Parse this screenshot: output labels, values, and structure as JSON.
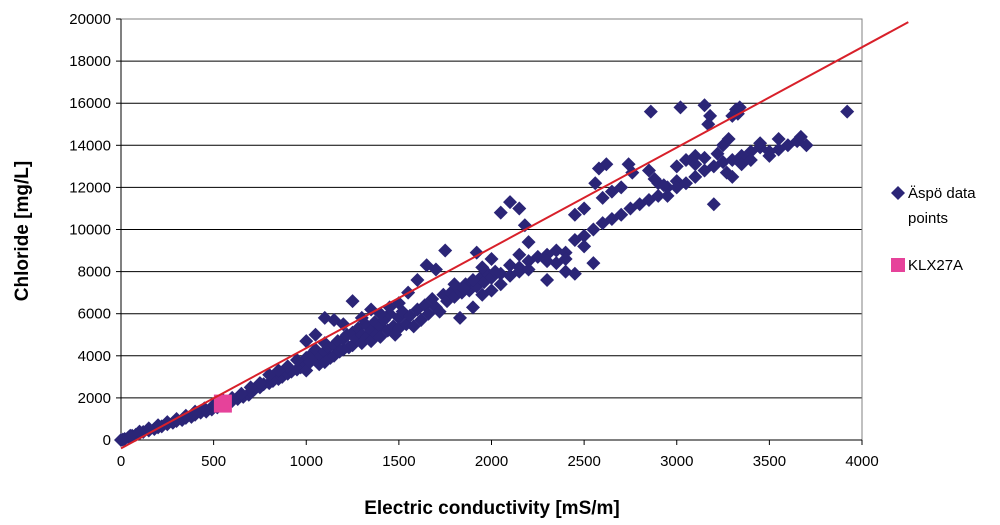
{
  "chart_data": {
    "type": "scatter",
    "title": "",
    "xlabel": "Electric conductivity [mS/m]",
    "ylabel": "Chloride [mg/L]",
    "xlim": [
      0,
      4000
    ],
    "ylim": [
      0,
      20000
    ],
    "xticks": [
      0,
      500,
      1000,
      1500,
      2000,
      2500,
      3000,
      3500,
      4000
    ],
    "yticks": [
      0,
      2000,
      4000,
      6000,
      8000,
      10000,
      12000,
      14000,
      16000,
      18000,
      20000
    ],
    "grid": "horizontal",
    "legend_position": "right",
    "series": [
      {
        "name": "Äspö data points",
        "marker": "diamond",
        "color": "#2b2577",
        "points": [
          [
            0,
            0
          ],
          [
            20,
            50
          ],
          [
            40,
            120
          ],
          [
            60,
            200
          ],
          [
            80,
            250
          ],
          [
            100,
            320
          ],
          [
            120,
            380
          ],
          [
            150,
            450
          ],
          [
            180,
            520
          ],
          [
            200,
            600
          ],
          [
            220,
            650
          ],
          [
            250,
            750
          ],
          [
            280,
            820
          ],
          [
            300,
            900
          ],
          [
            330,
            950
          ],
          [
            350,
            1050
          ],
          [
            380,
            1100
          ],
          [
            400,
            1200
          ],
          [
            430,
            1300
          ],
          [
            460,
            1350
          ],
          [
            490,
            1450
          ],
          [
            520,
            1550
          ],
          [
            550,
            1650
          ],
          [
            580,
            1750
          ],
          [
            600,
            1850
          ],
          [
            630,
            1950
          ],
          [
            660,
            2050
          ],
          [
            690,
            2150
          ],
          [
            700,
            2300
          ],
          [
            720,
            2400
          ],
          [
            750,
            2500
          ],
          [
            770,
            2650
          ],
          [
            800,
            2700
          ],
          [
            820,
            2800
          ],
          [
            850,
            2900
          ],
          [
            870,
            3000
          ],
          [
            900,
            3150
          ],
          [
            920,
            3250
          ],
          [
            950,
            3350
          ],
          [
            970,
            3450
          ],
          [
            1000,
            3600
          ],
          [
            1000,
            3300
          ],
          [
            1000,
            3900
          ],
          [
            1020,
            3700
          ],
          [
            1030,
            4100
          ],
          [
            1050,
            3800
          ],
          [
            1050,
            4300
          ],
          [
            1070,
            3600
          ],
          [
            1080,
            4000
          ],
          [
            1100,
            4200
          ],
          [
            1100,
            3700
          ],
          [
            1100,
            4600
          ],
          [
            1120,
            4400
          ],
          [
            1130,
            3900
          ],
          [
            1150,
            4500
          ],
          [
            1150,
            4000
          ],
          [
            1170,
            4700
          ],
          [
            1180,
            4200
          ],
          [
            1200,
            4800
          ],
          [
            1200,
            4300
          ],
          [
            1220,
            5000
          ],
          [
            1230,
            4400
          ],
          [
            1250,
            5100
          ],
          [
            1250,
            4500
          ],
          [
            1270,
            4800
          ],
          [
            1280,
            5300
          ],
          [
            1300,
            5000
          ],
          [
            1300,
            4600
          ],
          [
            1320,
            5500
          ],
          [
            1330,
            4900
          ],
          [
            1350,
            5200
          ],
          [
            1350,
            4700
          ],
          [
            1370,
            5600
          ],
          [
            1380,
            5000
          ],
          [
            1400,
            5400
          ],
          [
            1400,
            4900
          ],
          [
            1420,
            5700
          ],
          [
            1440,
            5200
          ],
          [
            1450,
            6000
          ],
          [
            1470,
            5400
          ],
          [
            1480,
            5000
          ],
          [
            1500,
            5800
          ],
          [
            1500,
            5300
          ],
          [
            1520,
            6100
          ],
          [
            1540,
            5500
          ],
          [
            1560,
            5900
          ],
          [
            1580,
            5400
          ],
          [
            1600,
            6200
          ],
          [
            1620,
            5700
          ],
          [
            1640,
            6400
          ],
          [
            1660,
            6000
          ],
          [
            1680,
            6700
          ],
          [
            1700,
            6300
          ],
          [
            1720,
            6100
          ],
          [
            1740,
            6900
          ],
          [
            1760,
            6600
          ],
          [
            1780,
            7000
          ],
          [
            1800,
            6800
          ],
          [
            1820,
            7200
          ],
          [
            1840,
            7000
          ],
          [
            1860,
            7400
          ],
          [
            1880,
            7100
          ],
          [
            1900,
            7500
          ],
          [
            1920,
            7300
          ],
          [
            1940,
            7700
          ],
          [
            1960,
            7500
          ],
          [
            1980,
            7900
          ],
          [
            2000,
            7700
          ],
          [
            2020,
            8000
          ],
          [
            2050,
            7900
          ],
          [
            2100,
            8300
          ],
          [
            2150,
            8200
          ],
          [
            2200,
            8500
          ],
          [
            2250,
            8700
          ],
          [
            2300,
            8800
          ],
          [
            2350,
            9000
          ],
          [
            2400,
            8900
          ],
          [
            2450,
            9500
          ],
          [
            2500,
            9700
          ],
          [
            2550,
            10000
          ],
          [
            2600,
            10300
          ],
          [
            2650,
            10500
          ],
          [
            2700,
            10700
          ],
          [
            2750,
            11000
          ],
          [
            2800,
            11200
          ],
          [
            2850,
            11400
          ],
          [
            2900,
            11600
          ],
          [
            2950,
            12000
          ],
          [
            3000,
            12300
          ],
          [
            3050,
            12200
          ],
          [
            3100,
            12500
          ],
          [
            3150,
            12800
          ],
          [
            3200,
            13000
          ],
          [
            3250,
            13200
          ],
          [
            3300,
            13300
          ],
          [
            3350,
            13500
          ],
          [
            3400,
            13700
          ],
          [
            3450,
            13900
          ],
          [
            3500,
            13500
          ],
          [
            3550,
            13800
          ],
          [
            3600,
            14000
          ],
          [
            3650,
            14200
          ],
          [
            3700,
            14000
          ],
          [
            3670,
            14400
          ],
          [
            3200,
            11200
          ],
          [
            3270,
            12700
          ],
          [
            3150,
            13400
          ],
          [
            3220,
            13600
          ],
          [
            3250,
            14000
          ],
          [
            3280,
            14300
          ],
          [
            3300,
            12500
          ],
          [
            3350,
            13100
          ],
          [
            3100,
            13100
          ],
          [
            3050,
            13300
          ],
          [
            3000,
            12000
          ],
          [
            2950,
            11600
          ],
          [
            2900,
            12200
          ],
          [
            2880,
            12400
          ],
          [
            2860,
            15600
          ],
          [
            2930,
            12100
          ],
          [
            2740,
            13100
          ],
          [
            2760,
            12700
          ],
          [
            2700,
            12000
          ],
          [
            2650,
            11800
          ],
          [
            2620,
            13100
          ],
          [
            2580,
            12900
          ],
          [
            2560,
            12200
          ],
          [
            2600,
            11500
          ],
          [
            2500,
            11000
          ],
          [
            2450,
            10700
          ],
          [
            2400,
            8000
          ],
          [
            2300,
            7600
          ],
          [
            2200,
            9400
          ],
          [
            2180,
            10200
          ],
          [
            2150,
            11000
          ],
          [
            2100,
            11300
          ],
          [
            2050,
            10800
          ],
          [
            2000,
            8600
          ],
          [
            1950,
            8200
          ],
          [
            1900,
            7600
          ],
          [
            1850,
            7200
          ],
          [
            1800,
            7400
          ],
          [
            1750,
            9000
          ],
          [
            1700,
            8100
          ],
          [
            1650,
            8300
          ],
          [
            1600,
            7600
          ],
          [
            1550,
            7000
          ],
          [
            1500,
            6500
          ],
          [
            1450,
            6300
          ],
          [
            1400,
            6000
          ],
          [
            1350,
            6200
          ],
          [
            1300,
            5800
          ],
          [
            1250,
            6600
          ],
          [
            1200,
            5500
          ],
          [
            1150,
            5700
          ],
          [
            1100,
            5800
          ],
          [
            1050,
            5000
          ],
          [
            1000,
            4700
          ],
          [
            950,
            3800
          ],
          [
            900,
            3500
          ],
          [
            850,
            3300
          ],
          [
            800,
            3100
          ],
          [
            750,
            2700
          ],
          [
            700,
            2500
          ],
          [
            650,
            2200
          ],
          [
            600,
            2000
          ],
          [
            550,
            1900
          ],
          [
            500,
            1650
          ],
          [
            450,
            1500
          ],
          [
            400,
            1350
          ],
          [
            350,
            1150
          ],
          [
            300,
            1000
          ],
          [
            250,
            850
          ],
          [
            200,
            700
          ],
          [
            150,
            550
          ],
          [
            100,
            400
          ],
          [
            50,
            200
          ],
          [
            10,
            20
          ],
          [
            1830,
            5800
          ],
          [
            1900,
            6300
          ],
          [
            1950,
            6900
          ],
          [
            2000,
            7100
          ],
          [
            2050,
            7400
          ],
          [
            2100,
            7800
          ],
          [
            2150,
            8000
          ],
          [
            2200,
            8100
          ],
          [
            2300,
            8500
          ],
          [
            2350,
            8400
          ],
          [
            2400,
            8600
          ],
          [
            2500,
            9200
          ],
          [
            2550,
            8400
          ],
          [
            2450,
            7900
          ],
          [
            2150,
            8800
          ],
          [
            1920,
            8900
          ],
          [
            3020,
            15800
          ],
          [
            3150,
            15900
          ],
          [
            3320,
            15700
          ],
          [
            3330,
            15500
          ],
          [
            3170,
            15000
          ],
          [
            3920,
            15600
          ],
          [
            3340,
            15800
          ],
          [
            3300,
            15400
          ],
          [
            3180,
            15400
          ],
          [
            3100,
            13500
          ],
          [
            3000,
            13000
          ],
          [
            3450,
            14100
          ],
          [
            3400,
            13300
          ],
          [
            3500,
            13700
          ],
          [
            3550,
            14300
          ],
          [
            2850,
            12800
          ]
        ]
      },
      {
        "name": "KLX27A",
        "marker": "square",
        "color": "#e6429a",
        "points": [
          [
            550,
            1730
          ]
        ]
      }
    ],
    "trendline": {
      "color": "#d8202a",
      "x": [
        0,
        4250
      ],
      "y": [
        -400,
        19850
      ]
    }
  }
}
